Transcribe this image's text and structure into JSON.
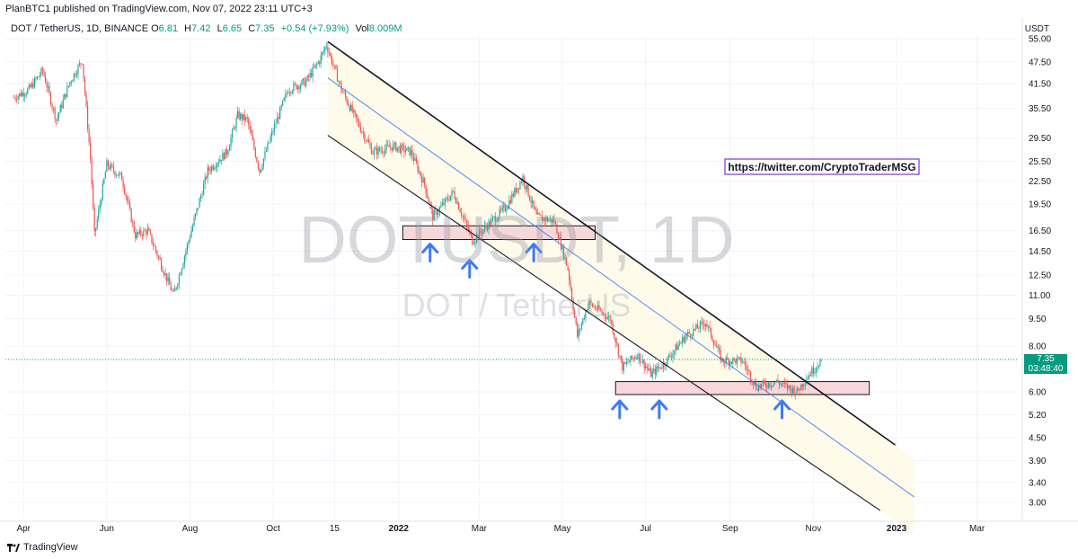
{
  "header": {
    "publisher": "PlanBTC1 published on TradingView.com, Nov 07, 2022 23:11 UTC+3"
  },
  "legend": {
    "symbol": "DOT / TetherUS, 1D, BINANCE",
    "o_label": "O",
    "o": "6.81",
    "h_label": "H",
    "h": "7.42",
    "l_label": "L",
    "l": "6.65",
    "c_label": "C",
    "c": "7.35",
    "change": "+0.54 (+7.93%)",
    "vol_label": "Vol",
    "vol": "8.009M"
  },
  "watermark": {
    "line1": "DOTUSDT, 1D",
    "line2": "DOT / TetherUS"
  },
  "annotation": {
    "link": "https://twitter.com/CryptoTraderMSG"
  },
  "price_label": {
    "price": "7.35",
    "countdown": "03:48:40"
  },
  "footer": {
    "brand": "TradingView"
  },
  "colors": {
    "up": "#26a69a",
    "down": "#ef5350",
    "arrow": "#3d7bf7",
    "channel_mid": "#3d7bf7",
    "zone_fill": "#f8d7da",
    "channel_fill": "#fffbe9"
  },
  "chart_data": {
    "type": "candlestick",
    "currency": "USDT",
    "y_scale": "log",
    "y_ticks": [
      55,
      47.5,
      41.5,
      35.5,
      29.5,
      25.5,
      22.5,
      19.5,
      16.5,
      14.5,
      12.5,
      11,
      9.5,
      8,
      6,
      5.2,
      4.5,
      3.9,
      3.4,
      3
    ],
    "y_tick_labels": [
      "55.00",
      "47.50",
      "41.50",
      "35.50",
      "29.50",
      "25.50",
      "22.50",
      "19.50",
      "16.50",
      "14.50",
      "12.50",
      "11.00",
      "9.50",
      "8.00",
      "6.00",
      "5.20",
      "4.50",
      "3.90",
      "3.40",
      "3.00"
    ],
    "x_ticks": [
      {
        "label": "Apr",
        "date": "2021-04-01"
      },
      {
        "label": "Jun",
        "date": "2021-06-01"
      },
      {
        "label": "Aug",
        "date": "2021-08-01"
      },
      {
        "label": "Oct",
        "date": "2021-10-01"
      },
      {
        "label": "15",
        "date": "2021-11-15"
      },
      {
        "label": "2022",
        "date": "2022-01-01"
      },
      {
        "label": "Mar",
        "date": "2022-03-01"
      },
      {
        "label": "May",
        "date": "2022-05-01"
      },
      {
        "label": "Jul",
        "date": "2022-07-01"
      },
      {
        "label": "Sep",
        "date": "2022-09-01"
      },
      {
        "label": "Nov",
        "date": "2022-11-01"
      },
      {
        "label": "2023",
        "date": "2023-01-01"
      },
      {
        "label": "Mar",
        "date": "2023-03-01"
      }
    ],
    "price_path": [
      [
        "2021-03-25",
        38
      ],
      [
        "2021-04-05",
        40
      ],
      [
        "2021-04-15",
        45
      ],
      [
        "2021-04-25",
        33
      ],
      [
        "2021-05-05",
        42
      ],
      [
        "2021-05-14",
        48
      ],
      [
        "2021-05-20",
        26
      ],
      [
        "2021-05-23",
        16
      ],
      [
        "2021-06-01",
        25
      ],
      [
        "2021-06-12",
        23
      ],
      [
        "2021-06-22",
        16
      ],
      [
        "2021-07-01",
        16.5
      ],
      [
        "2021-07-20",
        11
      ],
      [
        "2021-08-01",
        16
      ],
      [
        "2021-08-14",
        24
      ],
      [
        "2021-08-28",
        27
      ],
      [
        "2021-09-05",
        34
      ],
      [
        "2021-09-12",
        33
      ],
      [
        "2021-09-21",
        24
      ],
      [
        "2021-10-01",
        31
      ],
      [
        "2021-10-12",
        40
      ],
      [
        "2021-10-25",
        42
      ],
      [
        "2021-11-04",
        48
      ],
      [
        "2021-11-09",
        53
      ],
      [
        "2021-11-20",
        40
      ],
      [
        "2021-12-01",
        33
      ],
      [
        "2021-12-13",
        27
      ],
      [
        "2021-12-28",
        28
      ],
      [
        "2022-01-10",
        27
      ],
      [
        "2022-01-20",
        22
      ],
      [
        "2022-01-26",
        18
      ],
      [
        "2022-02-10",
        21
      ],
      [
        "2022-02-24",
        15.5
      ],
      [
        "2022-03-10",
        17.5
      ],
      [
        "2022-03-20",
        19
      ],
      [
        "2022-04-02",
        23
      ],
      [
        "2022-04-12",
        18
      ],
      [
        "2022-04-25",
        17.5
      ],
      [
        "2022-05-05",
        13
      ],
      [
        "2022-05-12",
        8.5
      ],
      [
        "2022-05-20",
        10.5
      ],
      [
        "2022-06-05",
        9.5
      ],
      [
        "2022-06-14",
        7
      ],
      [
        "2022-06-25",
        7.6
      ],
      [
        "2022-07-05",
        6.7
      ],
      [
        "2022-07-15",
        7.2
      ],
      [
        "2022-07-30",
        8.5
      ],
      [
        "2022-08-14",
        9.3
      ],
      [
        "2022-08-26",
        7.3
      ],
      [
        "2022-09-10",
        7.3
      ],
      [
        "2022-09-20",
        6.2
      ],
      [
        "2022-10-05",
        6.4
      ],
      [
        "2022-10-20",
        6.0
      ],
      [
        "2022-10-26",
        6.5
      ],
      [
        "2022-11-07",
        7.35
      ]
    ],
    "last_price": 7.35,
    "channel": {
      "upper": [
        [
          "2021-11-10",
          54
        ],
        [
          "2022-12-31",
          4.3
        ]
      ],
      "mid": [
        [
          "2021-11-10",
          43
        ],
        [
          "2023-01-14",
          3.1
        ]
      ],
      "lower": [
        [
          "2021-11-10",
          30
        ],
        [
          "2022-12-20",
          2.85
        ]
      ]
    },
    "zones": [
      {
        "start": "2022-01-04",
        "end": "2022-05-25",
        "low": 15.6,
        "high": 17.0
      },
      {
        "start": "2022-06-09",
        "end": "2022-12-12",
        "low": 5.9,
        "high": 6.4
      }
    ],
    "arrows": [
      "2022-01-24",
      "2022-02-22",
      "2022-04-10",
      "2022-06-12",
      "2022-07-11",
      "2022-10-09"
    ]
  }
}
